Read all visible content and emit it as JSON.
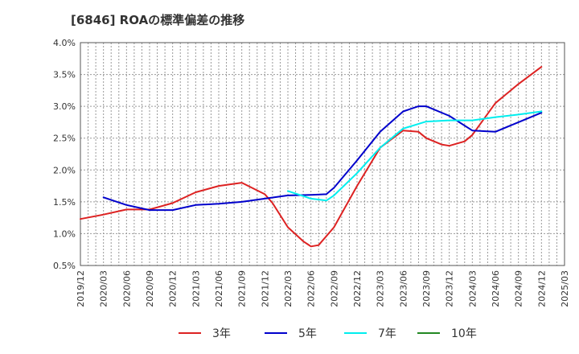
{
  "chart_data": {
    "type": "line",
    "title": "[6846]  ROAの標準偏差の推移",
    "xlabel": "",
    "ylabel": "",
    "ylim": [
      0.5,
      4.0
    ],
    "y_ticks": [
      "4.0%",
      "3.5%",
      "3.0%",
      "2.5%",
      "2.0%",
      "1.5%",
      "1.0%",
      "0.5%"
    ],
    "y_tick_values": [
      4.0,
      3.5,
      3.0,
      2.5,
      2.0,
      1.5,
      1.0,
      0.5
    ],
    "x_ticks": [
      "2019/12",
      "2020/03",
      "2020/06",
      "2020/09",
      "2020/12",
      "2021/03",
      "2021/06",
      "2021/09",
      "2021/12",
      "2022/03",
      "2022/06",
      "2022/09",
      "2022/12",
      "2023/03",
      "2023/06",
      "2023/09",
      "2023/12",
      "2024/03",
      "2024/06",
      "2024/09",
      "2024/12",
      "2025/03"
    ],
    "grid": true,
    "legend_position": "bottom",
    "series": [
      {
        "name": "3年",
        "color": "#dd2222",
        "x": [
          "2019/12",
          "2020/03",
          "2020/06",
          "2020/09",
          "2020/12",
          "2021/03",
          "2021/06",
          "2021/09",
          "2021/12",
          "2022/01",
          "2022/03",
          "2022/05",
          "2022/06",
          "2022/07",
          "2022/09",
          "2022/12",
          "2023/03",
          "2023/06",
          "2023/08",
          "2023/09",
          "2023/11",
          "2023/12",
          "2024/02",
          "2024/03",
          "2024/06",
          "2024/09",
          "2024/12"
        ],
        "values": [
          1.23,
          1.3,
          1.38,
          1.38,
          1.48,
          1.65,
          1.75,
          1.8,
          1.62,
          1.48,
          1.1,
          0.88,
          0.8,
          0.82,
          1.1,
          1.75,
          2.35,
          2.62,
          2.6,
          2.5,
          2.4,
          2.38,
          2.45,
          2.55,
          3.05,
          3.35,
          3.62
        ]
      },
      {
        "name": "5年",
        "color": "#0000cc",
        "x": [
          "2020/03",
          "2020/06",
          "2020/09",
          "2020/12",
          "2021/03",
          "2021/06",
          "2021/09",
          "2021/12",
          "2022/03",
          "2022/06",
          "2022/08",
          "2022/09",
          "2022/12",
          "2023/03",
          "2023/06",
          "2023/08",
          "2023/09",
          "2023/12",
          "2024/03",
          "2024/06",
          "2024/09",
          "2024/12"
        ],
        "values": [
          1.57,
          1.45,
          1.37,
          1.37,
          1.45,
          1.47,
          1.5,
          1.55,
          1.6,
          1.61,
          1.62,
          1.72,
          2.15,
          2.6,
          2.92,
          3.0,
          3.0,
          2.85,
          2.62,
          2.6,
          2.75,
          2.9
        ]
      },
      {
        "name": "7年",
        "color": "#00eeee",
        "x": [
          "2022/03",
          "2022/06",
          "2022/08",
          "2022/09",
          "2022/12",
          "2023/03",
          "2023/06",
          "2023/09",
          "2023/12",
          "2024/03",
          "2024/06",
          "2024/09",
          "2024/12"
        ],
        "values": [
          1.67,
          1.55,
          1.52,
          1.6,
          1.95,
          2.35,
          2.65,
          2.76,
          2.78,
          2.78,
          2.83,
          2.87,
          2.92
        ]
      },
      {
        "name": "10年",
        "color": "#228822",
        "x": [],
        "values": []
      }
    ]
  }
}
